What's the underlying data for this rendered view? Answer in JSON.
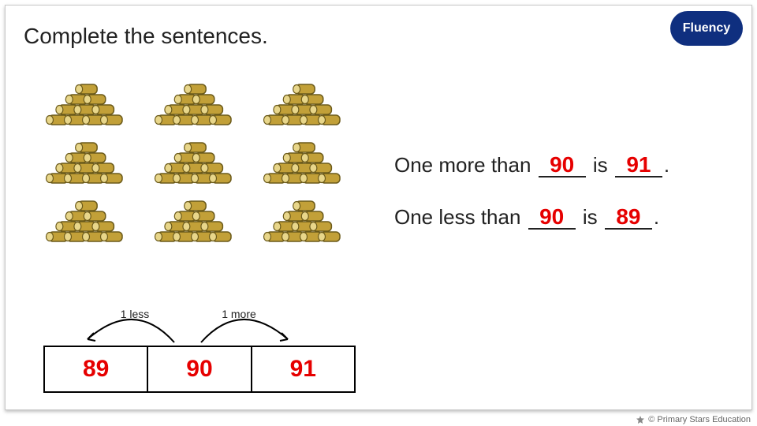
{
  "badge": {
    "label": "Fluency",
    "bg": "#0f2f7f",
    "fg": "#ffffff"
  },
  "instruction": "Complete the sentences.",
  "log_pile": {
    "grid_rows": 3,
    "grid_cols": 3,
    "log_color": "#c2a038",
    "log_outline": "#6b5a1a",
    "log_end": "#e8d68a"
  },
  "sentences": {
    "more": {
      "prefix": "One more than ",
      "blank1": "90",
      "mid": " is ",
      "blank2": "91",
      "suffix": "."
    },
    "less": {
      "prefix": "One less than ",
      "blank1": "90",
      "mid": " is ",
      "blank2": "89",
      "suffix": "."
    }
  },
  "answer_color": "#e60000",
  "number_track": {
    "arc_less_label": "1 less",
    "arc_more_label": "1 more",
    "cells": [
      "89",
      "90",
      "91"
    ]
  },
  "copyright": "© Primary Stars Education"
}
